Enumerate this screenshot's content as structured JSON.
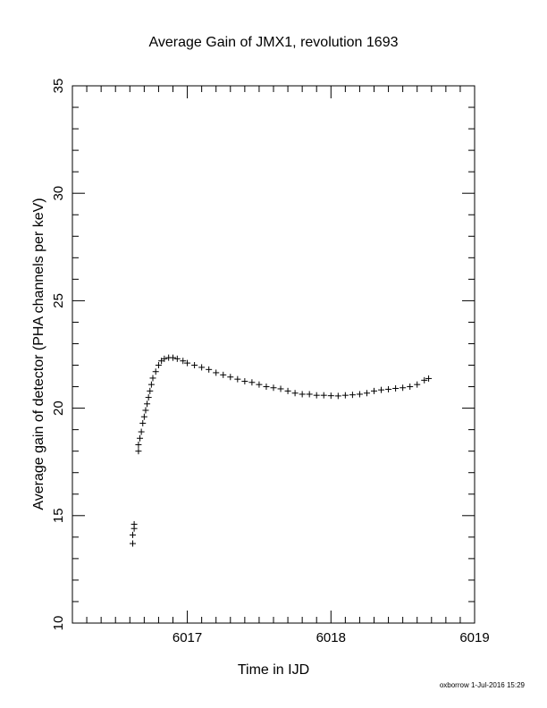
{
  "chart_data": {
    "type": "scatter",
    "title": "Average Gain of JMX1, revolution 1693",
    "xlabel": "Time in IJD",
    "ylabel": "Average gain of detector (PHA channels per keV)",
    "xlim": [
      6016.2,
      6019
    ],
    "ylim": [
      10,
      35
    ],
    "xticks": [
      6017,
      6018,
      6019
    ],
    "yticks": [
      10,
      15,
      20,
      25,
      30,
      35
    ],
    "grid": false,
    "marker": "plus",
    "marker_color": "#000000",
    "series": [
      {
        "points": [
          [
            6016.62,
            13.7
          ],
          [
            6016.62,
            14.1
          ],
          [
            6016.63,
            14.4
          ],
          [
            6016.63,
            14.6
          ],
          [
            6016.66,
            18.0
          ],
          [
            6016.66,
            18.3
          ],
          [
            6016.67,
            18.6
          ],
          [
            6016.68,
            18.9
          ],
          [
            6016.69,
            19.3
          ],
          [
            6016.7,
            19.6
          ],
          [
            6016.71,
            19.9
          ],
          [
            6016.72,
            20.2
          ],
          [
            6016.73,
            20.5
          ],
          [
            6016.74,
            20.8
          ],
          [
            6016.75,
            21.1
          ],
          [
            6016.76,
            21.4
          ],
          [
            6016.78,
            21.7
          ],
          [
            6016.8,
            22.0
          ],
          [
            6016.82,
            22.2
          ],
          [
            6016.84,
            22.3
          ],
          [
            6016.87,
            22.35
          ],
          [
            6016.9,
            22.35
          ],
          [
            6016.93,
            22.3
          ],
          [
            6016.97,
            22.2
          ],
          [
            6017.0,
            22.1
          ],
          [
            6017.05,
            22.0
          ],
          [
            6017.1,
            21.9
          ],
          [
            6017.15,
            21.8
          ],
          [
            6017.2,
            21.65
          ],
          [
            6017.25,
            21.55
          ],
          [
            6017.3,
            21.45
          ],
          [
            6017.35,
            21.35
          ],
          [
            6017.4,
            21.25
          ],
          [
            6017.45,
            21.2
          ],
          [
            6017.5,
            21.1
          ],
          [
            6017.55,
            21.0
          ],
          [
            6017.6,
            20.95
          ],
          [
            6017.65,
            20.9
          ],
          [
            6017.7,
            20.8
          ],
          [
            6017.75,
            20.7
          ],
          [
            6017.8,
            20.65
          ],
          [
            6017.85,
            20.65
          ],
          [
            6017.9,
            20.6
          ],
          [
            6017.95,
            20.6
          ],
          [
            6018.0,
            20.58
          ],
          [
            6018.05,
            20.57
          ],
          [
            6018.1,
            20.6
          ],
          [
            6018.15,
            20.62
          ],
          [
            6018.2,
            20.65
          ],
          [
            6018.25,
            20.7
          ],
          [
            6018.3,
            20.8
          ],
          [
            6018.35,
            20.85
          ],
          [
            6018.4,
            20.88
          ],
          [
            6018.45,
            20.92
          ],
          [
            6018.5,
            20.95
          ],
          [
            6018.55,
            21.0
          ],
          [
            6018.6,
            21.1
          ],
          [
            6018.65,
            21.3
          ],
          [
            6018.68,
            21.38
          ]
        ]
      }
    ]
  },
  "footer": {
    "stamp": "oxborrow  1-Jul-2016 15:29"
  }
}
